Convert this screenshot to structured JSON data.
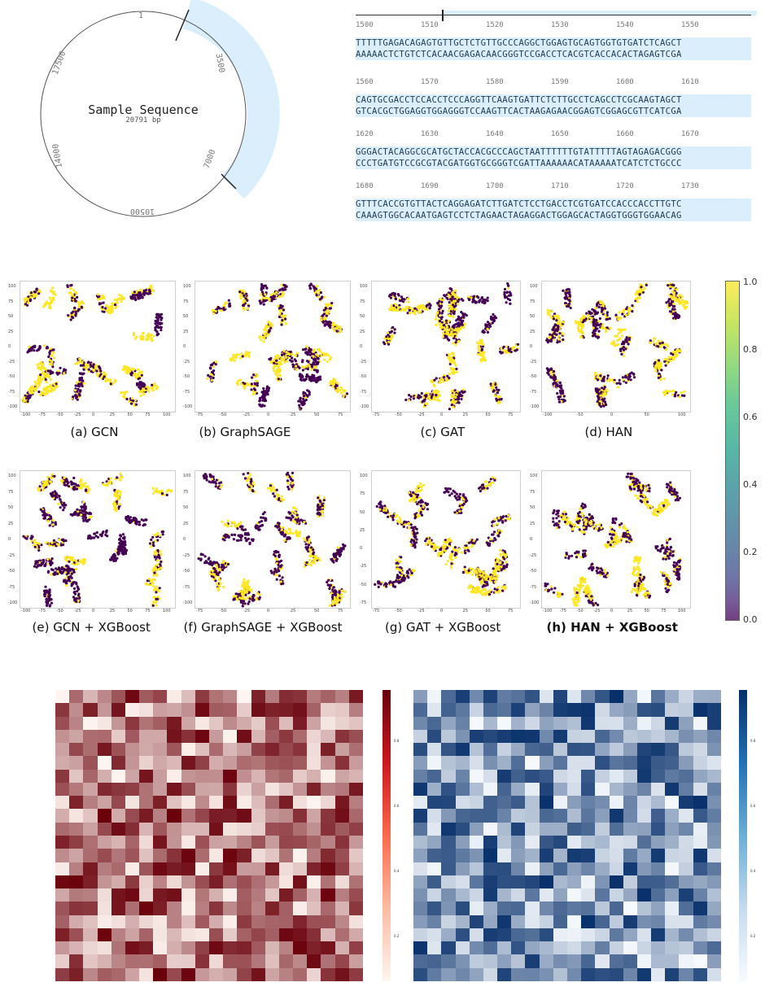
{
  "plasmid": {
    "title": "Sample Sequence",
    "length_label": "20791 bp",
    "labels": [
      "1",
      "3500",
      "7000",
      "10500",
      "14000",
      "17500"
    ]
  },
  "sequence": {
    "ruler_top": [
      "1500",
      "1510",
      "1520",
      "1530",
      "1540",
      "1550"
    ],
    "blocks": [
      {
        "ruler": [
          "1500",
          "1510",
          "1520",
          "1530",
          "1540",
          "1550"
        ],
        "top": "TTTTTGAGACAGAGTGTTGCTCTGTTGCCCAGGCTGGAGTGCAGTGGTGTGATCTCAGCT",
        "bottom": "AAAAACTCTGTCTCACAACGAGACAACGGGTCCGACCTCACGTCACCACACTAGAGTCGA"
      },
      {
        "ruler": [
          "1560",
          "1570",
          "1580",
          "1590",
          "1600",
          "1610"
        ],
        "top": "CAGTGCGACCTCCACCTCCCAGGTTCAAGTGATTCTCTTGCCTCAGCCTCGCAAGTAGCT",
        "bottom": "GTCACGCTGGAGGTGGAGGGTCCAAGTTCACTAAGAGAACGGAGTCGGAGCGTTCATCGA"
      },
      {
        "ruler": [
          "1620",
          "1630",
          "1640",
          "1650",
          "1660",
          "1670"
        ],
        "top": "GGGACTACAGGCGCATGCTACCACGCCCAGCTAATTTTTTGTATTTTTAGTAGAGACGGG",
        "bottom": "CCCTGATGTCCGCGTACGATGGTGCGGGTCGATTAAAAAACATAAAAATCATCTCTGCCC"
      },
      {
        "ruler": [
          "1680",
          "1690",
          "1700",
          "1710",
          "1720",
          "1730"
        ],
        "top": "GTTTCACCGTGTTACTCAGGAGATCTTGATCTCCTGACCTCGTGATCCACCCACCTTGTC",
        "bottom": "CAAAGTGGCACAATGAGTCCTCTAGAACTAGAGGACTGGAGCACTAGGTGGGTGGAACAG"
      }
    ]
  },
  "tsne": {
    "panels": [
      {
        "caption": "(a) GCN",
        "bold": false,
        "xticks": [
          "-100",
          "-75",
          "-50",
          "-25",
          "0",
          "25",
          "50",
          "75",
          "100"
        ],
        "yticks": [
          "100",
          "75",
          "50",
          "25",
          "0",
          "-25",
          "-50",
          "-75",
          "-100"
        ]
      },
      {
        "caption": "(b) GraphSAGE",
        "bold": false,
        "xticks": [
          "-75",
          "-50",
          "-25",
          "0",
          "25",
          "50",
          "75"
        ],
        "yticks": [
          "100",
          "75",
          "50",
          "25",
          "0",
          "-25",
          "-50",
          "-75",
          "-100"
        ]
      },
      {
        "caption": "(c) GAT",
        "bold": false,
        "xticks": [
          "-75",
          "-50",
          "-25",
          "0",
          "25",
          "50",
          "75"
        ],
        "yticks": [
          "100",
          "75",
          "50",
          "25",
          "0",
          "-25",
          "-50",
          "-75",
          "-100"
        ]
      },
      {
        "caption": "(d) HAN",
        "bold": false,
        "xticks": [
          "-100",
          "-50",
          "0",
          "50",
          "100"
        ],
        "yticks": [
          "100",
          "75",
          "50",
          "25",
          "0",
          "-25",
          "-50",
          "-75",
          "-100"
        ]
      },
      {
        "caption": "(e) GCN + XGBoost",
        "bold": false,
        "xticks": [
          "-100",
          "-75",
          "-50",
          "-25",
          "0",
          "25",
          "50",
          "75",
          "100"
        ],
        "yticks": [
          "100",
          "75",
          "50",
          "25",
          "0",
          "-25",
          "-50",
          "-75",
          "-100"
        ]
      },
      {
        "caption": "(f) GraphSAGE + XGBoost",
        "bold": false,
        "xticks": [
          "-75",
          "-50",
          "-25",
          "0",
          "25",
          "50",
          "75"
        ],
        "yticks": [
          "100",
          "75",
          "50",
          "25",
          "0",
          "-25",
          "-50",
          "-75",
          "-100"
        ]
      },
      {
        "caption": "(g) GAT + XGBoost",
        "bold": false,
        "xticks": [
          "-75",
          "-50",
          "-25",
          "0",
          "25",
          "50",
          "75"
        ],
        "yticks": [
          "100",
          "75",
          "50",
          "25",
          "0",
          "-25",
          "-50",
          "-75"
        ]
      },
      {
        "caption": "(h) HAN + XGBoost",
        "bold": true,
        "xticks": [
          "-100",
          "-75",
          "-50",
          "-25",
          "0",
          "25",
          "50",
          "75",
          "100"
        ],
        "yticks": [
          "100",
          "75",
          "50",
          "25",
          "0",
          "-25",
          "-50",
          "-75",
          "-100"
        ]
      }
    ],
    "colorbar": {
      "ticks": [
        "1.0",
        "0.8",
        "0.6",
        "0.4",
        "0.2",
        "0.0"
      ],
      "colors": {
        "low": "#440154",
        "mid": "#21918c",
        "high": "#fde725"
      }
    }
  },
  "heatmaps": {
    "left": {
      "scheme": "Reds",
      "cbar_ticks": [
        "0.8",
        "0.6",
        "0.4",
        "0.2"
      ]
    },
    "right": {
      "scheme": "Blues",
      "cbar_ticks": [
        "0.8",
        "0.6",
        "0.4",
        "0.2"
      ]
    }
  }
}
